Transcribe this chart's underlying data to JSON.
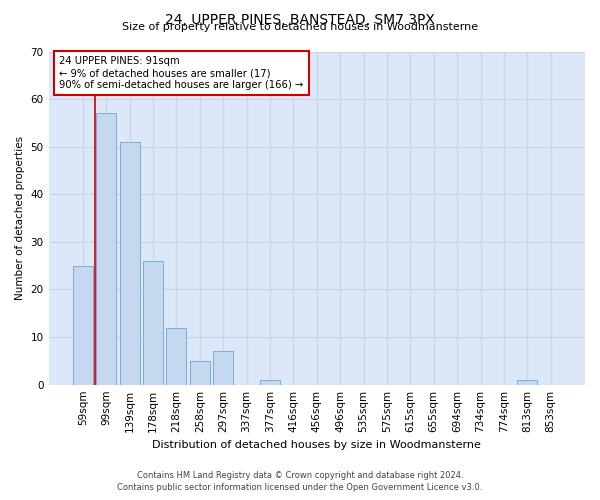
{
  "title": "24, UPPER PINES, BANSTEAD, SM7 3PX",
  "subtitle": "Size of property relative to detached houses in Woodmansterne",
  "xlabel": "Distribution of detached houses by size in Woodmansterne",
  "ylabel": "Number of detached properties",
  "categories": [
    "59sqm",
    "99sqm",
    "139sqm",
    "178sqm",
    "218sqm",
    "258sqm",
    "297sqm",
    "337sqm",
    "377sqm",
    "416sqm",
    "456sqm",
    "496sqm",
    "535sqm",
    "575sqm",
    "615sqm",
    "655sqm",
    "694sqm",
    "734sqm",
    "774sqm",
    "813sqm",
    "853sqm"
  ],
  "values": [
    25,
    57,
    51,
    26,
    12,
    5,
    7,
    0,
    1,
    0,
    0,
    0,
    0,
    0,
    0,
    0,
    0,
    0,
    0,
    1,
    0
  ],
  "bar_color": "#c5d8f0",
  "bar_edge_color": "#7aafd4",
  "ylim": [
    0,
    70
  ],
  "yticks": [
    0,
    10,
    20,
    30,
    40,
    50,
    60,
    70
  ],
  "annotation_line1": "24 UPPER PINES: 91sqm",
  "annotation_line2": "← 9% of detached houses are smaller (17)",
  "annotation_line3": "90% of semi-detached houses are larger (166) →",
  "vline_color": "#cc0000",
  "grid_color": "#c8d4e8",
  "background_color": "#dce8f8",
  "footer1": "Contains HM Land Registry data © Crown copyright and database right 2024.",
  "footer2": "Contains public sector information licensed under the Open Government Licence v3.0."
}
